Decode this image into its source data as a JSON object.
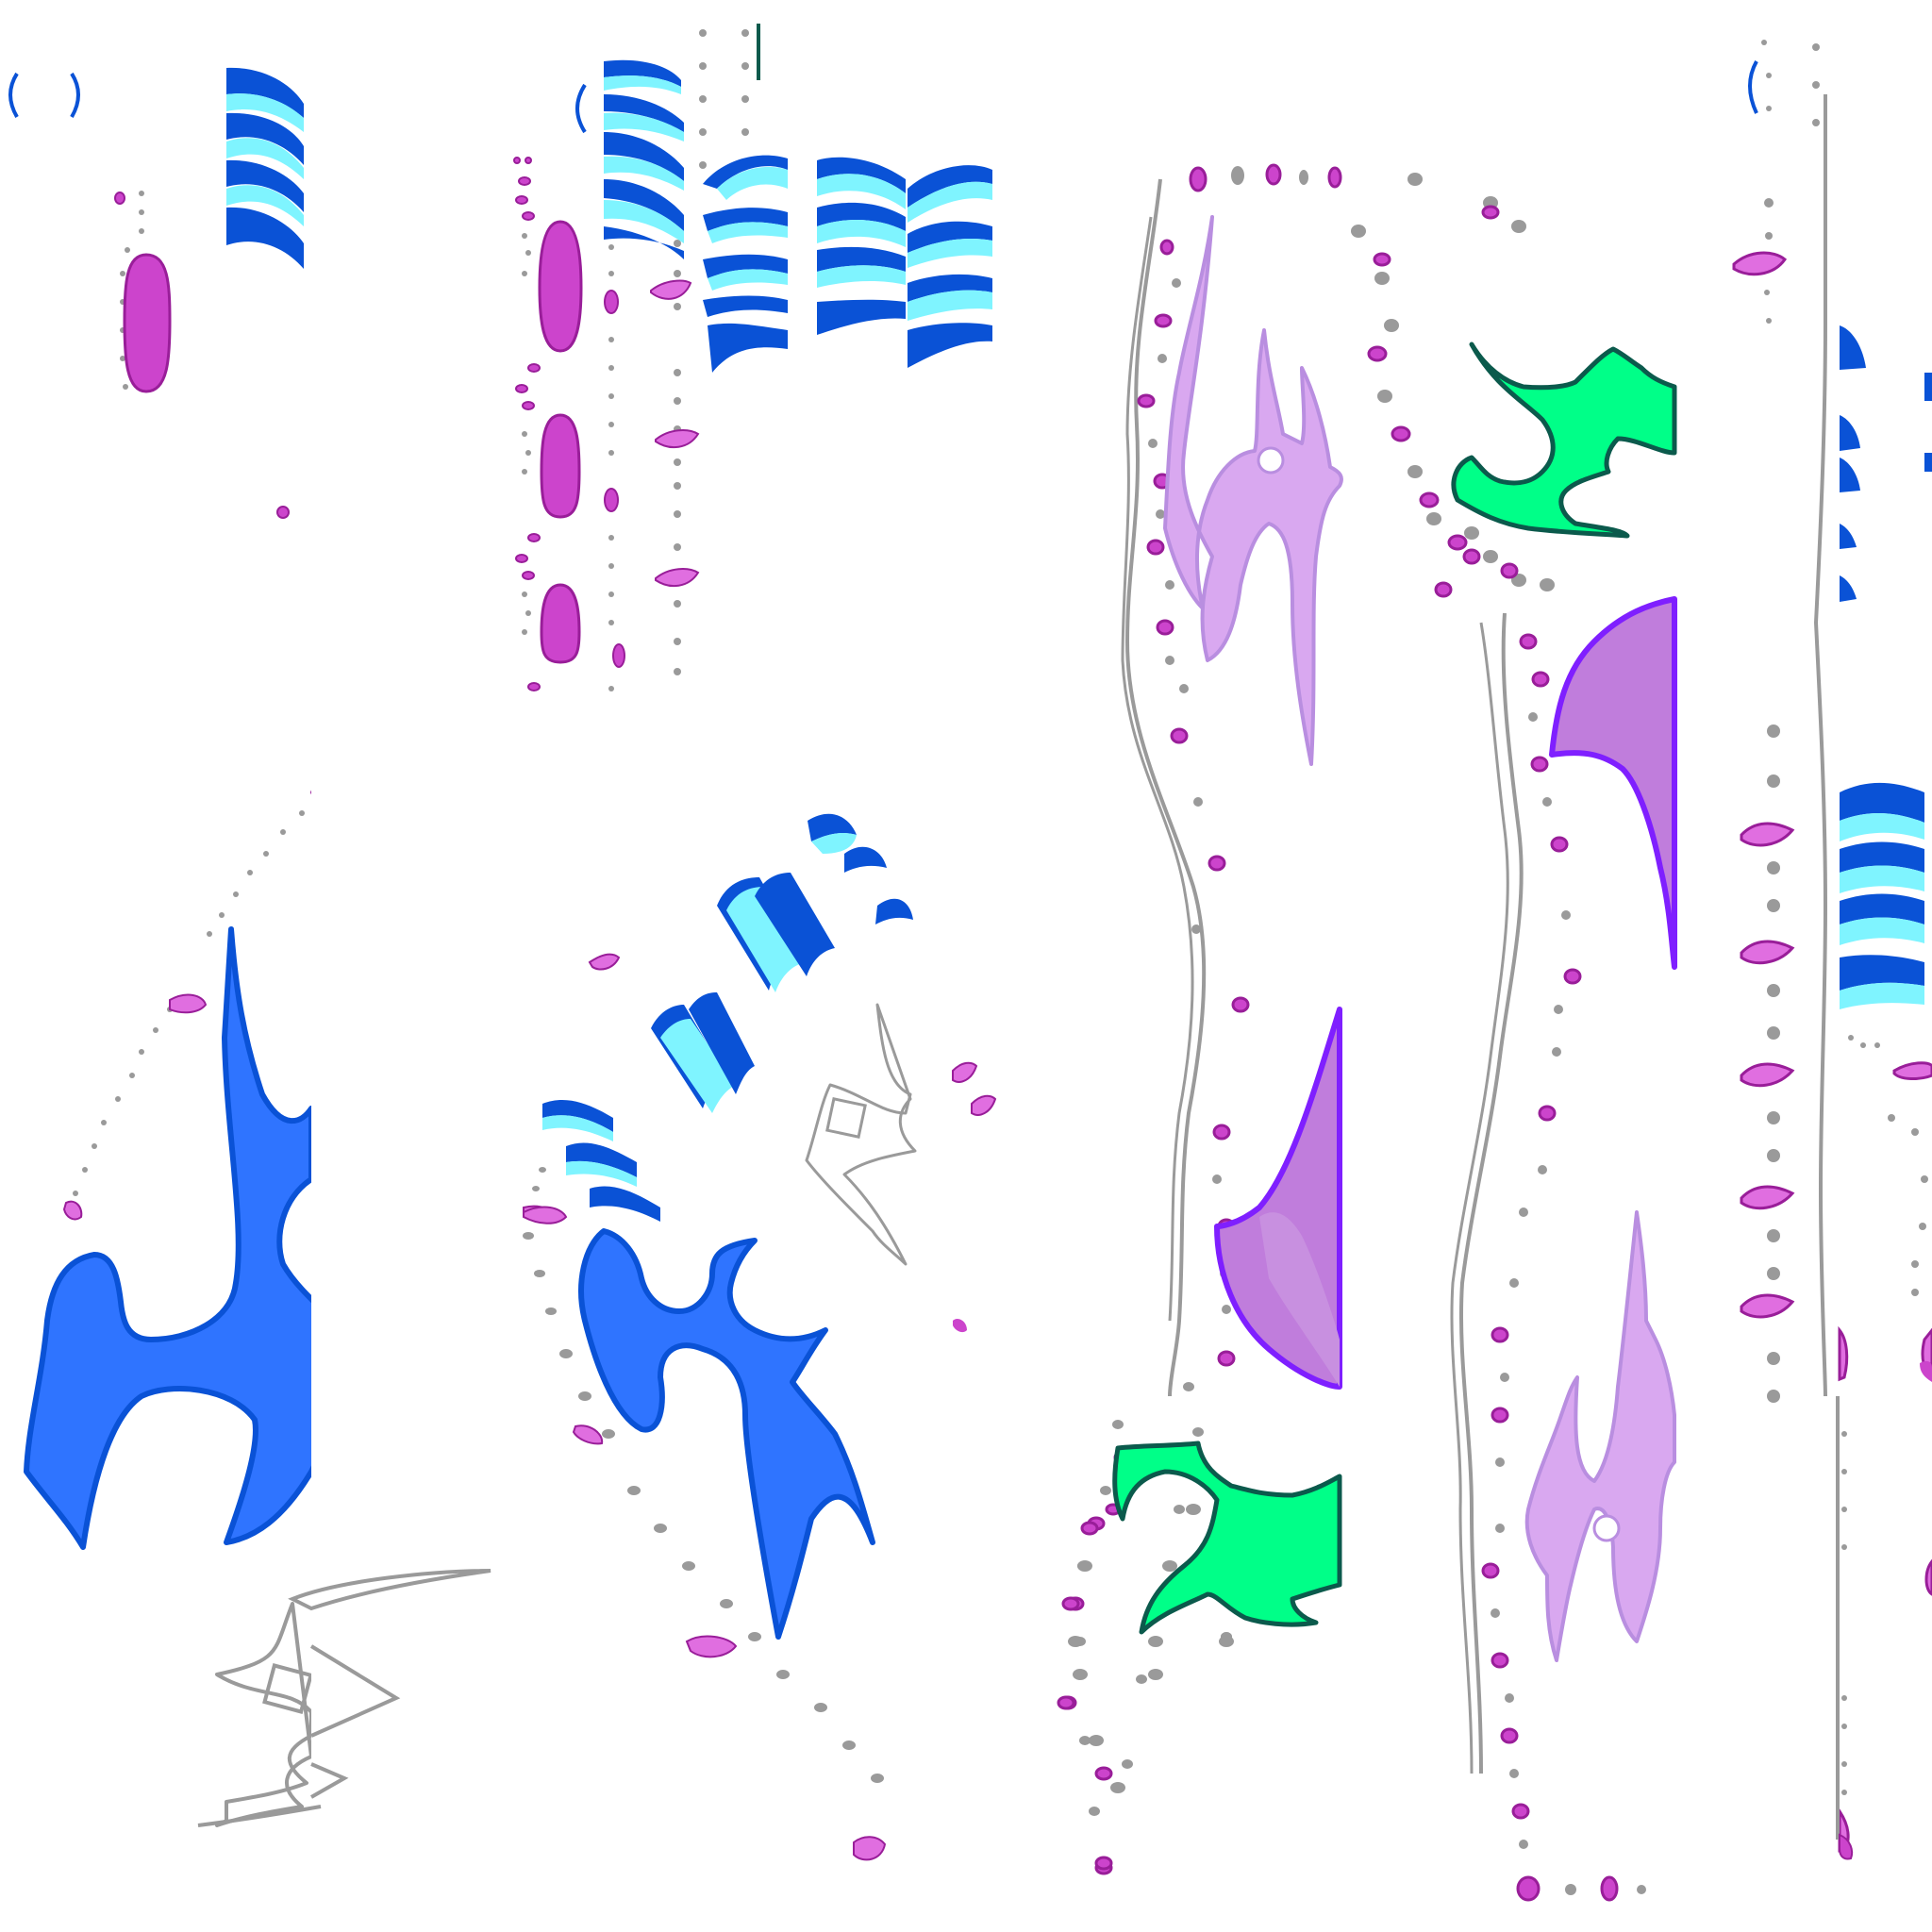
{
  "artwork": {
    "background_color": "#ffffff",
    "palette": {
      "blue": "#2f74ff",
      "blue_dark": "#0a52d6",
      "cyan": "#7ff4ff",
      "magenta": "#cc44cc",
      "magenta_dark": "#991e99",
      "orchid": "#e06ee0",
      "gray": "#9a9a9a",
      "lavender": "#d9a8f0",
      "lavender_stroke": "#b98ee0",
      "violet": "#7f1fff",
      "violet_fill": "#c07ddc",
      "green": "#00ff88",
      "green_dark": "#0b5a4c"
    },
    "motifs": [
      "blue-hook-shape",
      "gray-outline-zigzag",
      "blue-cyan-stripe-bands",
      "magenta-dot-columns",
      "gray-dot-columns",
      "lavender-cross-shape",
      "violet-petal-shape",
      "green-hook-shape",
      "gray-wavy-lines"
    ]
  }
}
